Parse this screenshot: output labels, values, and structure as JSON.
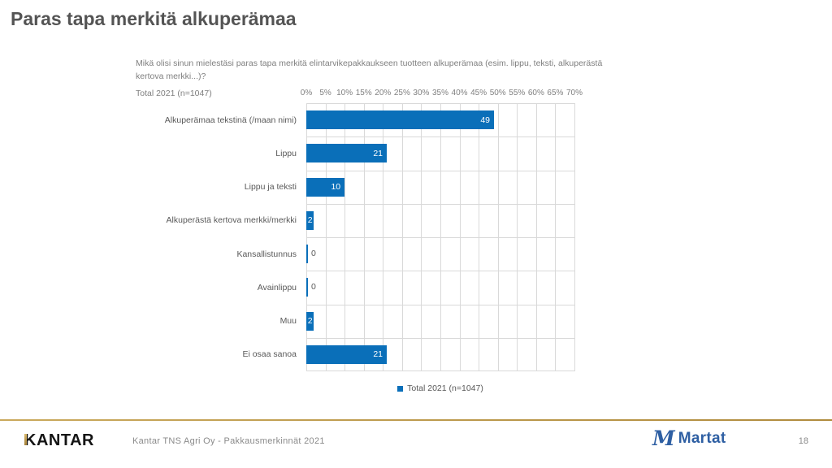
{
  "slide": {
    "title": "Paras tapa merkitä alkuperämaa"
  },
  "chart": {
    "question": "Mikä olisi sinun mielestäsi paras tapa merkitä elintarvikepakkaukseen tuotteen alkuperämaa (esim. lippu, teksti, alkuperästä kertova merkki...)?",
    "total_label": "Total 2021 (n=1047)",
    "legend_label": "Total 2021 (n=1047)"
  },
  "chart_data": {
    "type": "bar",
    "orientation": "horizontal",
    "title": "",
    "categories": [
      "Alkuperämaa tekstinä (/maan nimi)",
      "Lippu",
      "Lippu ja teksti",
      "Alkuperästä kertova merkki/merkki",
      "Kansallistunnus",
      "Avainlippu",
      "Muu",
      "Ei osaa sanoa"
    ],
    "series": [
      {
        "name": "Total 2021 (n=1047)",
        "values": [
          49,
          21,
          10,
          2,
          0,
          0,
          2,
          21
        ]
      }
    ],
    "x_ticks": [
      "0%",
      "5%",
      "10%",
      "15%",
      "20%",
      "25%",
      "30%",
      "35%",
      "40%",
      "45%",
      "50%",
      "55%",
      "60%",
      "65%",
      "70%"
    ],
    "xlim": [
      0,
      70
    ],
    "grid": true,
    "legend_position": "bottom",
    "bar_color": "#0a6fb9",
    "grid_color": "#d9d9d9",
    "value_label_color": "#ffffff",
    "zero_label_color": "#595959"
  },
  "footer": {
    "kantar_logo_text": "KANTAR",
    "source_text": "Kantar TNS Agri Oy - Pakkausmerkinnät 2021",
    "martat_logo_text": "Martat",
    "page_number": "18",
    "accent_color": "#c2a04f"
  }
}
